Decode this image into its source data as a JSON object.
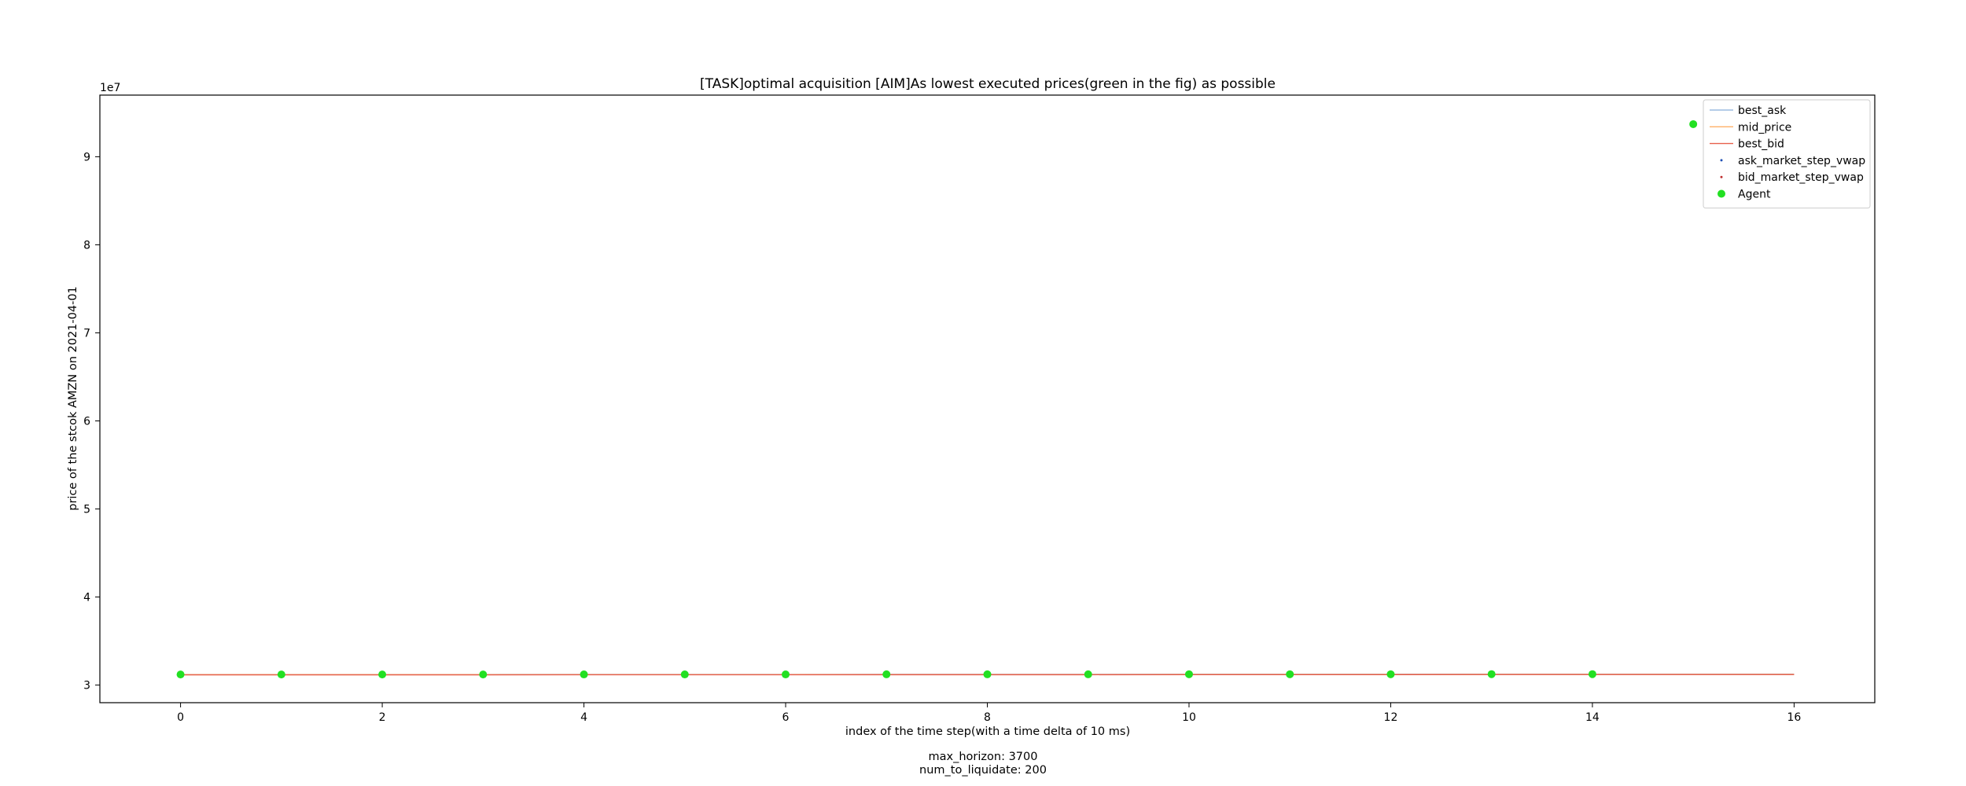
{
  "chart_data": {
    "type": "line",
    "title": "[TASK]optimal acquisition  [AIM]As lowest executed prices(green in the fig) as possible",
    "xlabel": "index of the time step(with a time delta of 10 ms)",
    "ylabel": "price of the stcok AMZN on 2021-04-01",
    "y_offset_label": "1e7",
    "xlim": [
      -0.8,
      16.8
    ],
    "ylim": [
      2.8,
      9.7
    ],
    "x_ticks": [
      0,
      2,
      4,
      6,
      8,
      10,
      12,
      14,
      16
    ],
    "y_ticks": [
      3,
      4,
      5,
      6,
      7,
      8,
      9
    ],
    "grid": false,
    "legend_position": "top-right",
    "series": [
      {
        "name": "best_ask",
        "kind": "line",
        "color": "#9bbbe0",
        "x": [
          0,
          1,
          2,
          3,
          4,
          5,
          6,
          7,
          8,
          9,
          10,
          11,
          12,
          13,
          14,
          15,
          16
        ],
        "y": [
          3.12,
          3.12,
          3.12,
          3.12,
          3.121,
          3.121,
          3.121,
          3.122,
          3.122,
          3.122,
          3.123,
          3.123,
          3.123,
          3.124,
          3.124,
          3.124,
          3.124
        ]
      },
      {
        "name": "mid_price",
        "kind": "line",
        "color": "#ffb066",
        "x": [
          0,
          1,
          2,
          3,
          4,
          5,
          6,
          7,
          8,
          9,
          10,
          11,
          12,
          13,
          14,
          15,
          16
        ],
        "y": [
          3.118,
          3.118,
          3.118,
          3.118,
          3.119,
          3.119,
          3.119,
          3.12,
          3.12,
          3.12,
          3.121,
          3.121,
          3.121,
          3.122,
          3.122,
          3.122,
          3.122
        ]
      },
      {
        "name": "best_bid",
        "kind": "line",
        "color": "#e8604c",
        "x": [
          0,
          1,
          2,
          3,
          4,
          5,
          6,
          7,
          8,
          9,
          10,
          11,
          12,
          13,
          14,
          15,
          16
        ],
        "y": [
          3.116,
          3.116,
          3.116,
          3.116,
          3.117,
          3.117,
          3.117,
          3.118,
          3.118,
          3.118,
          3.119,
          3.119,
          3.119,
          3.12,
          3.12,
          3.12,
          3.12
        ]
      },
      {
        "name": "ask_market_step_vwap",
        "kind": "scatter",
        "color": "#1f4fb4",
        "x": [],
        "y": []
      },
      {
        "name": "bid_market_step_vwap",
        "kind": "scatter",
        "color": "#c03030",
        "x": [],
        "y": []
      },
      {
        "name": "Agent",
        "kind": "scatter",
        "color": "#22e022",
        "x": [
          0,
          1,
          2,
          3,
          4,
          5,
          6,
          7,
          8,
          9,
          10,
          11,
          12,
          13,
          14,
          15
        ],
        "y": [
          3.12,
          3.12,
          3.12,
          3.12,
          3.121,
          3.121,
          3.121,
          3.122,
          3.122,
          3.122,
          3.123,
          3.123,
          3.123,
          3.124,
          3.124,
          9.37
        ]
      }
    ]
  },
  "footer": {
    "line1": "max_horizon: 3700",
    "line2": "num_to_liquidate: 200"
  }
}
